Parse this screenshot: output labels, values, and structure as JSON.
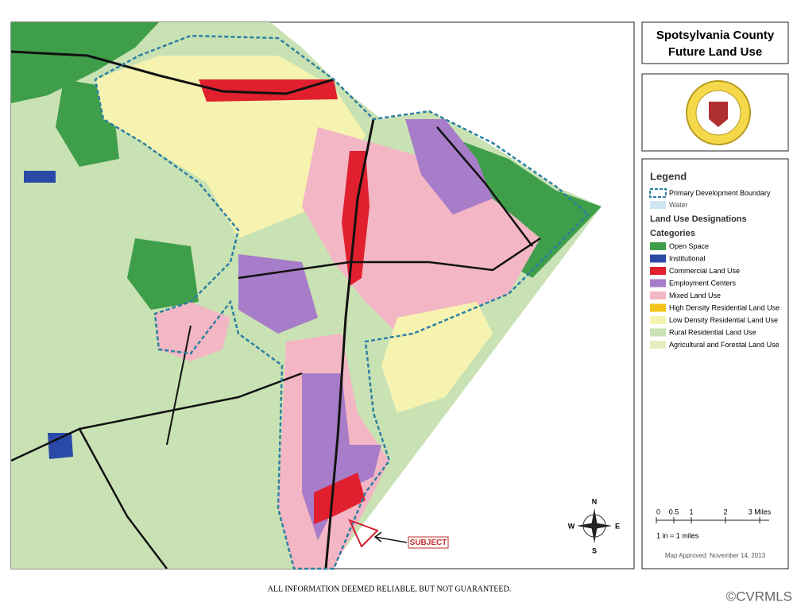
{
  "title": {
    "line1": "Spotsylvania County",
    "line2": "Future Land Use"
  },
  "legend": {
    "title": "Legend",
    "boundary": "Primary Development Boundary",
    "water": "Water",
    "designations": "Land Use Designations",
    "categories_title": "Categories",
    "categories": [
      {
        "label": "Open Space",
        "color": "#3f9e4a"
      },
      {
        "label": "Institutional",
        "color": "#2b4aa8"
      },
      {
        "label": "Commercial Land Use",
        "color": "#e0202e"
      },
      {
        "label": "Employment Centers",
        "color": "#a77cc8"
      },
      {
        "label": "Mixed Land Use",
        "color": "#f3b6c4"
      },
      {
        "label": "High Density Residential Land Use",
        "color": "#f2c318"
      },
      {
        "label": "Low Density Residential Land Use",
        "color": "#f6f3b0"
      },
      {
        "label": "Rural Residential Land Use",
        "color": "#c9e2b4"
      },
      {
        "label": "Agricultural and Forestal Land Use",
        "color": "#e3efc1"
      }
    ]
  },
  "scale": {
    "ticks": [
      "0",
      "0.5",
      "1",
      "2",
      "3 Miles"
    ],
    "ratio": "1 in = 1 miles"
  },
  "approved": "Map Approved: November 14, 2013",
  "compass": {
    "n": "N",
    "s": "S",
    "e": "E",
    "w": "W"
  },
  "subject": "SUBJECT",
  "disclaimer": "ALL INFORMATION DEEMED RELIABLE, BUT NOT GUARANTEED.",
  "watermark": "©CVRMLS"
}
